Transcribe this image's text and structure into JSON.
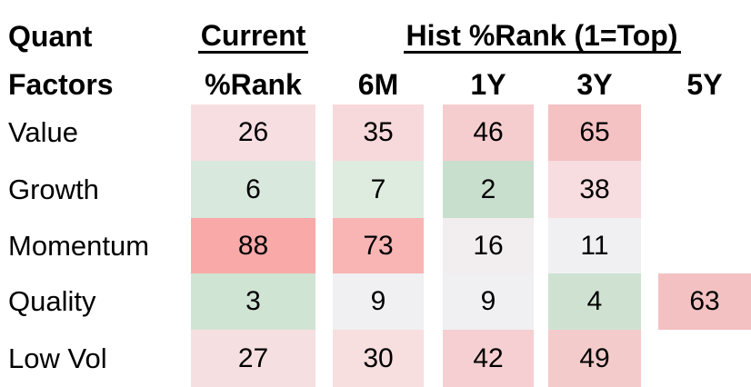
{
  "header": {
    "title_line1": "Quant",
    "title_line2": "Factors",
    "current": "Current",
    "current_sub": "%Rank",
    "hist": "Hist %Rank (1=Top)",
    "periods": [
      "6M",
      "1Y",
      "3Y",
      "5Y"
    ]
  },
  "chart_data": {
    "type": "heatmap",
    "title": "Quant Factors percentile ranks",
    "row_header": "Quant Factors",
    "columns": [
      "Current %Rank",
      "6M",
      "1Y",
      "3Y",
      "5Y"
    ],
    "scale_note": "1=Top",
    "color_scale": {
      "low_green": "#c8dfcd",
      "mid_white": "#f0f0f2",
      "high_red": "#f8a9a8"
    },
    "rows": [
      {
        "label": "Value",
        "values": [
          26,
          35,
          46,
          65,
          null
        ],
        "colors": [
          "#f7dfe1",
          "#f7d9db",
          "#f6cdcf",
          "#f4c2c3",
          null
        ]
      },
      {
        "label": "Growth",
        "values": [
          6,
          7,
          2,
          38,
          null
        ],
        "colors": [
          "#d9e8dc",
          "#deebdf",
          "#c8dfcd",
          "#f7dce0",
          null
        ]
      },
      {
        "label": "Momentum",
        "values": [
          88,
          73,
          16,
          11,
          null
        ],
        "colors": [
          "#f8a9a8",
          "#f8b5b4",
          "#f2edee",
          "#f0f0f2",
          null
        ]
      },
      {
        "label": "Quality",
        "values": [
          3,
          9,
          9,
          4,
          63
        ],
        "colors": [
          "#d0e4d3",
          "#f0eff1",
          "#f0eff1",
          "#cfe2d2",
          "#f4c1c3"
        ]
      },
      {
        "label": "Low Vol",
        "values": [
          27,
          30,
          42,
          49,
          null
        ],
        "colors": [
          "#f6dfe0",
          "#f7dedf",
          "#f5cfd1",
          "#f4cbcb",
          null
        ]
      }
    ]
  }
}
